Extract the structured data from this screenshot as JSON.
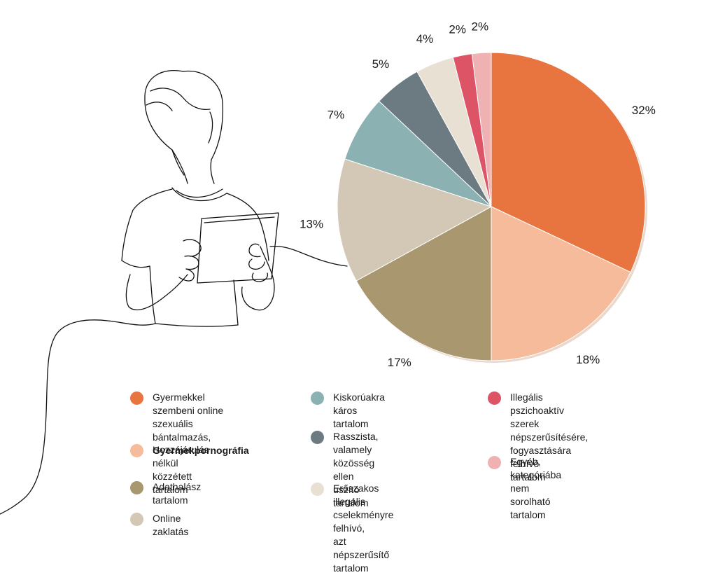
{
  "chart_data": {
    "type": "pie",
    "slices": [
      {
        "label": "Gyermekkel szembeni online\nszexuális bántalmazás,\nGyermekpornográfia",
        "value": 32,
        "display": "32%",
        "color": "#E8743F"
      },
      {
        "label": "Hozzájárulás nélkül\nközzétett tartalom",
        "value": 18,
        "display": "18%",
        "color": "#F6BB9B"
      },
      {
        "label": "Adathalász tartalom",
        "value": 17,
        "display": "17%",
        "color": "#A8976F"
      },
      {
        "label": "Online zaklatás",
        "value": 13,
        "display": "13%",
        "color": "#D3C8B5"
      },
      {
        "label": "Kiskorúakra\nkáros tartalom",
        "value": 7,
        "display": "7%",
        "color": "#8BB1B2"
      },
      {
        "label": "Rasszista, valamely\nközösség ellen\nuszító tartalom",
        "value": 5,
        "display": "5%",
        "color": "#6C7A82"
      },
      {
        "label": "Erőszakos illegális\ncselekményre felhívó,\nazt népszerűsítő tartalom",
        "value": 4,
        "display": "4%",
        "color": "#E7E0D3"
      },
      {
        "label": "Illegális pszichoaktív\nszerek népszerűsítésére,\nfogyasztására felhívó\ntartalom",
        "value": 2,
        "display": "2%",
        "color": "#DE5467"
      },
      {
        "label": "Egyéb, kategóriába nem\nsorolható tartalom",
        "value": 2,
        "display": "2%",
        "color": "#EFB1B1"
      }
    ],
    "legend_placement": "bottom",
    "legend": {
      "first_item_lead": "Gyermekkel szembeni online\nszexuális bántalmazás,",
      "first_item_bold": "Gyermekpornográfia"
    }
  }
}
